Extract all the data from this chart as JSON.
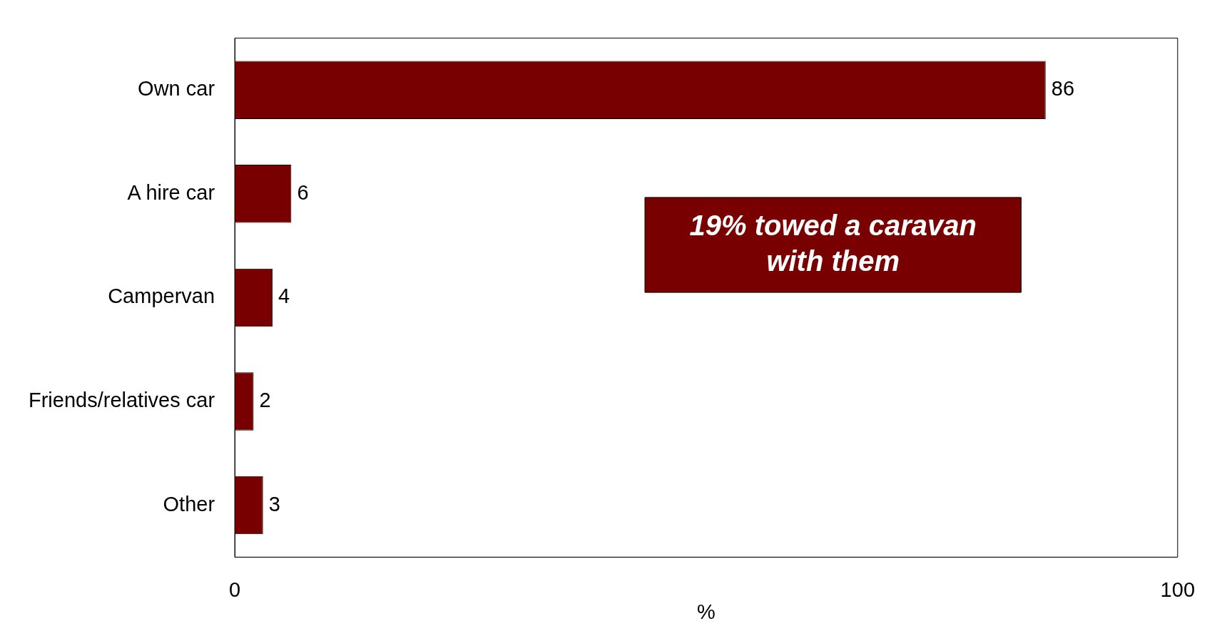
{
  "chart_data": {
    "type": "bar",
    "orientation": "horizontal",
    "categories": [
      "Own car",
      "A hire car",
      "Campervan",
      "Friends/relatives car",
      "Other"
    ],
    "values": [
      86,
      6,
      4,
      2,
      3
    ],
    "color": "#780000",
    "xlim": [
      0,
      100
    ],
    "xticks": [
      0,
      100
    ],
    "xlabel": "%",
    "data_labels": true,
    "grid": false,
    "legend": false,
    "annotations": [
      "19% towed a caravan with them"
    ]
  }
}
